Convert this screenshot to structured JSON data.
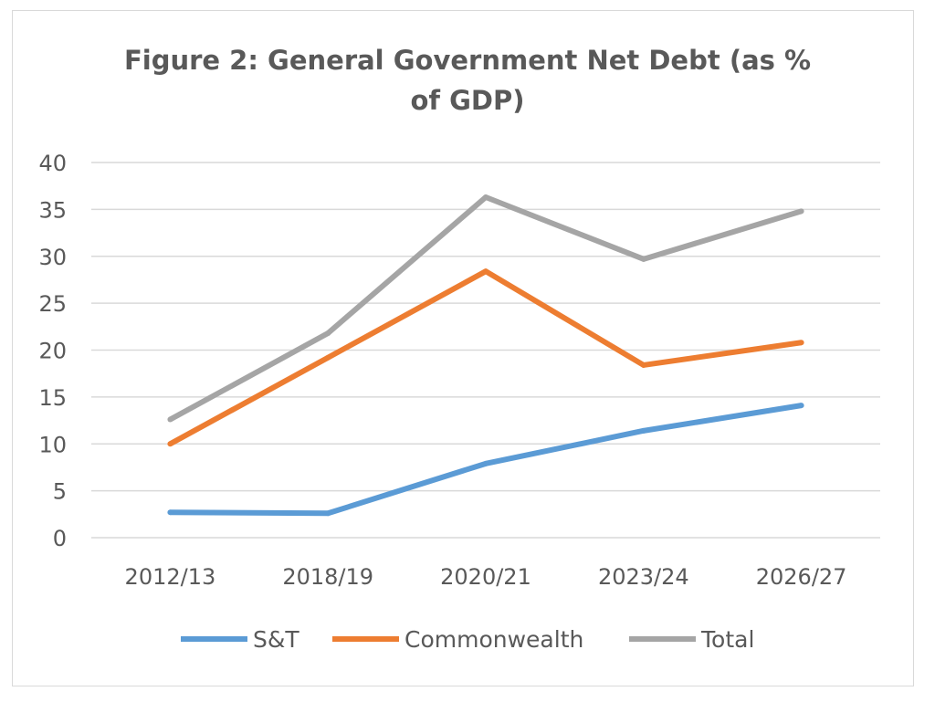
{
  "chart_data": {
    "type": "line",
    "title_lines": [
      "Figure 2: General Government Net Debt (as %",
      "of GDP)"
    ],
    "categories": [
      "2012/13",
      "2018/19",
      "2020/21",
      "2023/24",
      "2026/27"
    ],
    "series": [
      {
        "name": "S&T",
        "color": "#5b9bd5",
        "values": [
          2.7,
          2.6,
          7.9,
          11.4,
          14.1
        ]
      },
      {
        "name": "Commonwealth",
        "color": "#ed7d31",
        "values": [
          10.0,
          19.2,
          28.4,
          18.4,
          20.8
        ]
      },
      {
        "name": "Total",
        "color": "#a5a5a5",
        "values": [
          12.6,
          21.8,
          36.3,
          29.7,
          34.8
        ]
      }
    ],
    "yticks": [
      "0",
      "5",
      "10",
      "15",
      "20",
      "25",
      "30",
      "35",
      "40"
    ],
    "ylim": [
      0,
      40
    ],
    "grid": true,
    "legend_position": "bottom",
    "gridline_color": "#d9d9d9"
  }
}
